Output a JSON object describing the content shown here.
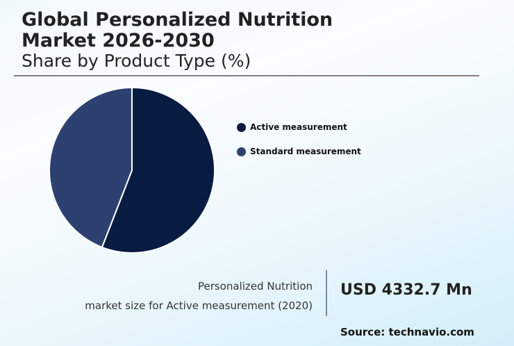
{
  "header": {
    "title_line1": "Global Personalized Nutrition",
    "title_line2": "Market 2026-2030",
    "subtitle": "Share by Product Type (%)"
  },
  "legend": [
    {
      "label": "Active measurement",
      "color": "#081b41"
    },
    {
      "label": "Standard measurement",
      "color": "#2c4170"
    }
  ],
  "callout": {
    "line1": "Personalized Nutrition",
    "line2": "market size for Active measurement (2020)",
    "value": "USD 4332.7 Mn"
  },
  "footer": {
    "source": "Source: technavio.com"
  },
  "chart_data": {
    "type": "pie",
    "title": "Global Personalized Nutrition Market 2026-2030",
    "subtitle": "Share by Product Type (%)",
    "categories": [
      "Active measurement",
      "Standard measurement"
    ],
    "values": [
      55.9,
      44.1
    ],
    "colors": [
      "#081b41",
      "#2c4170"
    ],
    "start_angle": "12 o'clock, clockwise",
    "legend_position": "right",
    "annotation": "Personalized Nutrition market size for Active measurement (2020): USD 4332.7 Mn"
  }
}
